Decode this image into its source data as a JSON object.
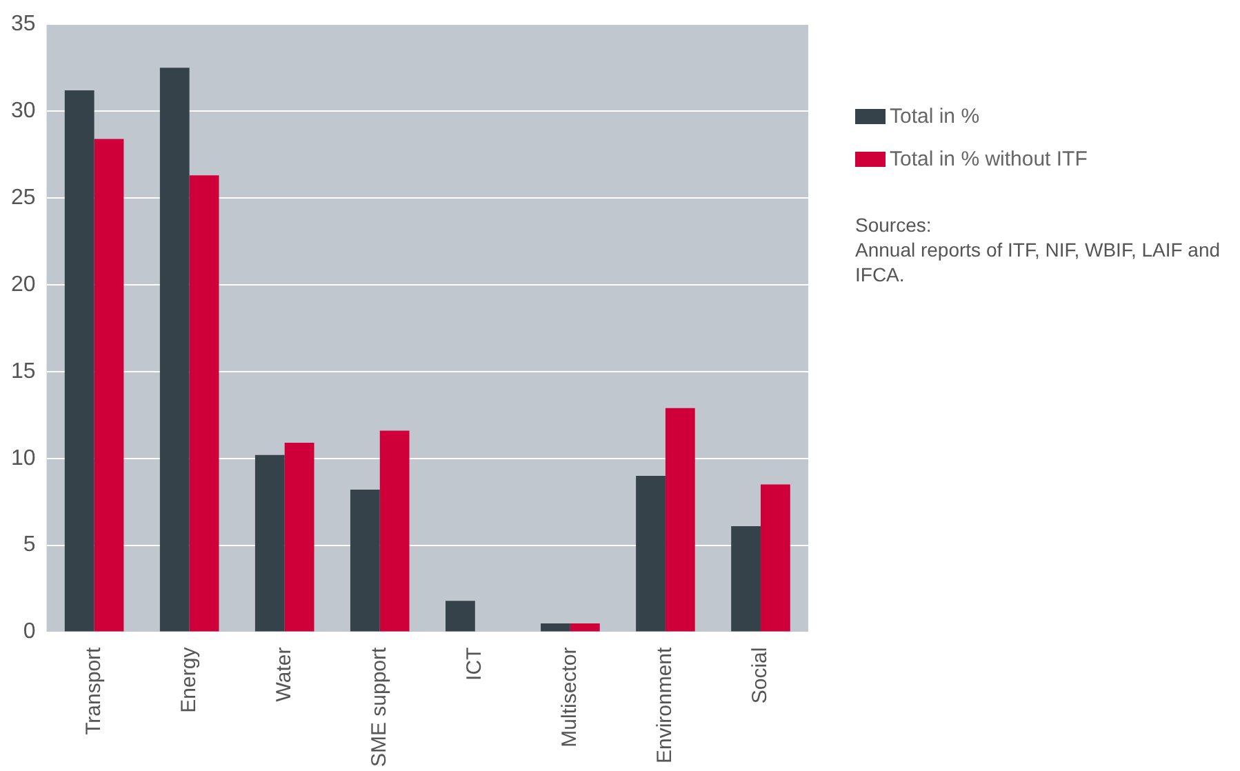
{
  "chart_data": {
    "type": "bar",
    "categories": [
      "Transport",
      "Energy",
      "Water",
      "SME support",
      "ICT",
      "Multisector",
      "Environment",
      "Social"
    ],
    "series": [
      {
        "name": "Total in %",
        "color": "#36424a",
        "values": [
          31.2,
          32.5,
          10.2,
          8.2,
          1.8,
          0.5,
          9.0,
          6.1
        ]
      },
      {
        "name": "Total in % without ITF",
        "color": "#cf0039",
        "values": [
          28.4,
          26.3,
          10.9,
          11.6,
          null,
          0.5,
          12.9,
          8.5
        ]
      }
    ],
    "ylim": [
      0,
      35
    ],
    "yticks": [
      0,
      5,
      10,
      15,
      20,
      25,
      30,
      35
    ],
    "grid": "y",
    "legend": "right",
    "annotations": [
      "Sources:\nAnnual reports of ITF, NIF, WBIF, LAIF and IFCA."
    ]
  }
}
